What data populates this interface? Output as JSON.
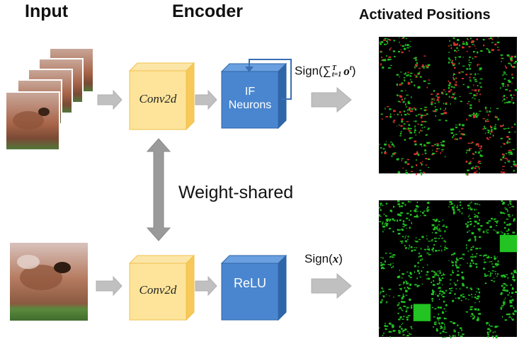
{
  "headers": {
    "input": "Input",
    "encoder": "Encoder",
    "activated": "Activated Positions"
  },
  "top_branch": {
    "conv_label": "Conv2d",
    "neuron_line1": "IF",
    "neuron_line2": "Neurons",
    "output_label": "Sign(∑",
    "sum_sub": "t=1",
    "sum_sup": "T",
    "sum_term": "o",
    "sum_term_sup": "t",
    "close": ")"
  },
  "bottom_branch": {
    "conv_label": "Conv2d",
    "act_label": "ReLU",
    "output_label": "Sign(",
    "output_var": "x",
    "close": ")"
  },
  "weight_shared_label": "Weight-shared",
  "colors": {
    "conv_front": "#fde49a",
    "conv_side": "#f6c958",
    "conv_border": "#f2c14e",
    "neuron_front": "#4a86cf",
    "neuron_side": "#2f66a8",
    "arrow": "#c0c0c0",
    "feedback": "#3a6fb5",
    "activation_green": "#22c322",
    "activation_red": "#d83030"
  }
}
